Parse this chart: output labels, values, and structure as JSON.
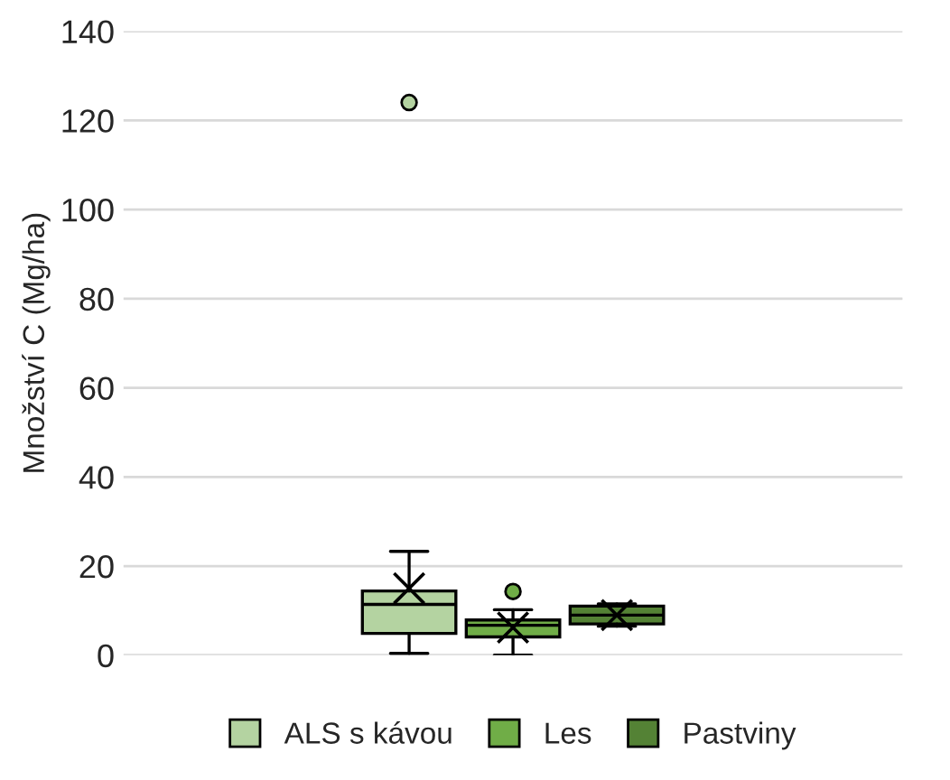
{
  "chart_data": {
    "type": "box",
    "ylabel": "Množství C (Mg/ha)",
    "categories": [
      null
    ],
    "ylim": [
      0,
      140
    ],
    "yticks": [
      0,
      20,
      40,
      60,
      80,
      100,
      120,
      140
    ],
    "grid": "y",
    "legend": "bottom",
    "series": [
      {
        "name": "ALS s kávou",
        "color": "#b4d3a1",
        "boxes": [
          {
            "low": 0.4,
            "q1": 4.9,
            "median": 11.4,
            "q3": 14.4,
            "high": 23.3,
            "mean": 15,
            "outliers": [
              124
            ]
          }
        ]
      },
      {
        "name": "Les",
        "color": "#70ad47",
        "boxes": [
          {
            "low": 0,
            "q1": 4.1,
            "median": 6.7,
            "q3": 7.9,
            "high": 10.2,
            "mean": 6.2,
            "outliers": [
              14.3
            ]
          }
        ]
      },
      {
        "name": "Pastviny",
        "color": "#548235",
        "boxes": [
          {
            "low": 6.5,
            "q1": 7,
            "median": 9,
            "q3": 11,
            "high": 11.5,
            "mean": 9
          }
        ]
      }
    ]
  }
}
